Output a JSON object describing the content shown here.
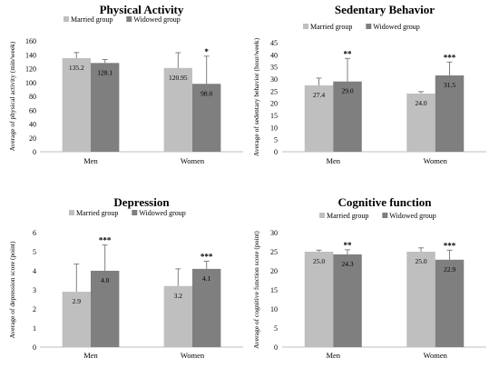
{
  "colors": {
    "married": "#bfbfbf",
    "widowed": "#7f7f7f",
    "axis": "#bfbfbf",
    "errorbar": "#808080"
  },
  "chart_data": [
    {
      "type": "bar",
      "title": "Physical Activity",
      "xlabel": "",
      "ylabel": "Average of physical activity (min/week)",
      "ylim": [
        0,
        160
      ],
      "yticks": [
        0,
        20,
        40,
        60,
        80,
        100,
        120,
        140,
        160
      ],
      "categories": [
        "Men",
        "Women"
      ],
      "legend_position": "top",
      "series": [
        {
          "name": "Married group",
          "values": [
            135.2,
            120.95
          ],
          "labels": [
            "135.2",
            "120.95"
          ],
          "err": [
            8,
            22
          ],
          "sig": [
            "",
            ""
          ]
        },
        {
          "name": "Widowed group",
          "values": [
            128.1,
            98.0
          ],
          "labels": [
            "128.1",
            "98.0"
          ],
          "err": [
            5,
            40
          ],
          "sig": [
            "",
            "*"
          ]
        }
      ]
    },
    {
      "type": "bar",
      "title": "Sedentary Behavior",
      "xlabel": "",
      "ylabel": "Average of sedentary behavior (hour/week)",
      "ylim": [
        0,
        45
      ],
      "yticks": [
        0,
        5,
        10,
        15,
        20,
        25,
        30,
        35,
        40,
        45
      ],
      "categories": [
        "Men",
        "Women"
      ],
      "legend_position": "top",
      "series": [
        {
          "name": "Married group",
          "values": [
            27.4,
            24.0
          ],
          "labels": [
            "27.4",
            "24.0"
          ],
          "err": [
            3,
            0.8
          ],
          "sig": [
            "",
            ""
          ]
        },
        {
          "name": "Widowed group",
          "values": [
            29.0,
            31.5
          ],
          "labels": [
            "29.0",
            "31.5"
          ],
          "err": [
            9.5,
            5.5
          ],
          "sig": [
            "**",
            "***"
          ]
        }
      ]
    },
    {
      "type": "bar",
      "title": "Depression",
      "xlabel": "",
      "ylabel": "Average of depression score (point)",
      "ylim": [
        0,
        6
      ],
      "yticks": [
        0,
        1,
        2,
        3,
        4,
        5,
        6
      ],
      "categories": [
        "Men",
        "Women"
      ],
      "legend_position": "top",
      "series": [
        {
          "name": "Married group",
          "values": [
            2.9,
            3.2
          ],
          "labels": [
            "2.9",
            "3.2"
          ],
          "err": [
            1.45,
            0.9
          ],
          "sig": [
            "",
            ""
          ]
        },
        {
          "name": "Widowed group",
          "values": [
            4.0,
            4.1
          ],
          "labels": [
            "4.0",
            "4.1"
          ],
          "err": [
            1.35,
            0.4
          ],
          "sig": [
            "***",
            "***"
          ]
        }
      ]
    },
    {
      "type": "bar",
      "title": "Cognitive function",
      "xlabel": "",
      "ylabel": "Average of cognitive function score (point)",
      "ylim": [
        0,
        30
      ],
      "yticks": [
        0,
        5,
        10,
        15,
        20,
        25,
        30
      ],
      "categories": [
        "Men",
        "Women"
      ],
      "legend_position": "top",
      "series": [
        {
          "name": "Married group",
          "values": [
            25.0,
            25.0
          ],
          "labels": [
            "25.0",
            "25.0"
          ],
          "err": [
            0.4,
            1.0
          ],
          "sig": [
            "",
            ""
          ]
        },
        {
          "name": "Widowed group",
          "values": [
            24.3,
            22.9
          ],
          "labels": [
            "24.3",
            "22.9"
          ],
          "err": [
            1.2,
            2.5
          ],
          "sig": [
            "**",
            "***"
          ]
        }
      ]
    }
  ]
}
